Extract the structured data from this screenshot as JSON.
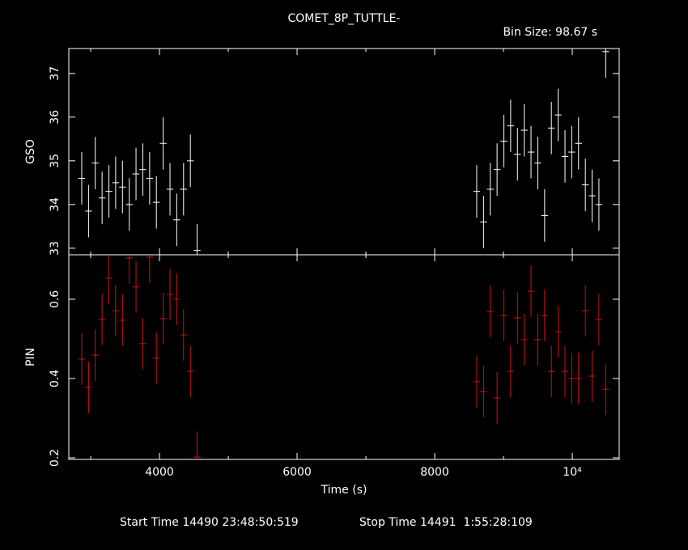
{
  "chart_data": {
    "type": "errorbar",
    "title": "COMET_8P_TUTTLE-",
    "bin_label": "Bin Size: 98.67 s",
    "xlabel": "Time (s)",
    "start_time": "Start Time 14490 23:48:50:519",
    "stop_time": "Stop Time 14491  1:55:28:109",
    "xlim": [
      2682,
      10682
    ],
    "xticks": [
      4000,
      6000,
      8000,
      {
        "value": 10000,
        "label": "10⁴"
      }
    ],
    "xminor": [
      3000,
      5000,
      7000,
      9000
    ],
    "x": [
      2870,
      2969,
      3067,
      3166,
      3265,
      3363,
      3462,
      3561,
      3659,
      3758,
      3857,
      3955,
      4054,
      4153,
      4251,
      4350,
      4449,
      4547,
      8611,
      8710,
      8808,
      8907,
      9006,
      9104,
      9203,
      9302,
      9400,
      9499,
      9598,
      9696,
      9795,
      9894,
      9992,
      10091,
      10190,
      10288,
      10387,
      10486
    ],
    "panels": [
      {
        "ylabel": "GSO",
        "color": "#ffffff",
        "ylim": [
          32.85,
          37.57
        ],
        "yticks": [
          33,
          34,
          35,
          36,
          37
        ],
        "values": [
          34.6,
          33.85,
          34.95,
          34.15,
          34.3,
          34.5,
          34.4,
          34.0,
          34.7,
          34.8,
          34.6,
          34.05,
          35.4,
          34.35,
          33.65,
          34.35,
          35.0,
          32.95,
          34.3,
          33.6,
          34.35,
          34.8,
          35.45,
          35.8,
          35.15,
          35.7,
          35.2,
          34.95,
          33.75,
          35.75,
          36.05,
          35.1,
          35.2,
          35.4,
          34.45,
          34.2,
          34.0,
          37.5
        ],
        "errors": [
          0.6,
          0.6,
          0.6,
          0.6,
          0.6,
          0.6,
          0.6,
          0.6,
          0.6,
          0.6,
          0.6,
          0.6,
          0.6,
          0.6,
          0.6,
          0.6,
          0.6,
          0.6,
          0.6,
          0.6,
          0.6,
          0.6,
          0.6,
          0.6,
          0.6,
          0.6,
          0.6,
          0.6,
          0.6,
          0.6,
          0.6,
          0.6,
          0.6,
          0.6,
          0.6,
          0.6,
          0.6,
          0.6
        ]
      },
      {
        "ylabel": "PIN",
        "color": "#d01010",
        "ylim": [
          0.196,
          0.712
        ],
        "yticks": [
          0.2,
          0.4,
          0.6
        ],
        "values": [
          0.449,
          0.378,
          0.459,
          0.549,
          0.653,
          0.571,
          0.547,
          0.704,
          0.631,
          0.488,
          0.706,
          0.451,
          0.551,
          0.612,
          0.6,
          0.51,
          0.418,
          0.202,
          0.392,
          0.367,
          0.569,
          0.351,
          0.559,
          0.418,
          0.553,
          0.498,
          0.62,
          0.498,
          0.559,
          0.418,
          0.518,
          0.418,
          0.4,
          0.4,
          0.571,
          0.406,
          0.549,
          0.373
        ],
        "errors": [
          0.065,
          0.065,
          0.065,
          0.065,
          0.065,
          0.065,
          0.065,
          0.065,
          0.065,
          0.065,
          0.065,
          0.065,
          0.065,
          0.065,
          0.065,
          0.065,
          0.065,
          0.065,
          0.065,
          0.065,
          0.065,
          0.065,
          0.065,
          0.065,
          0.065,
          0.065,
          0.065,
          0.065,
          0.065,
          0.065,
          0.065,
          0.065,
          0.065,
          0.065,
          0.065,
          0.065,
          0.065,
          0.065
        ]
      }
    ]
  }
}
